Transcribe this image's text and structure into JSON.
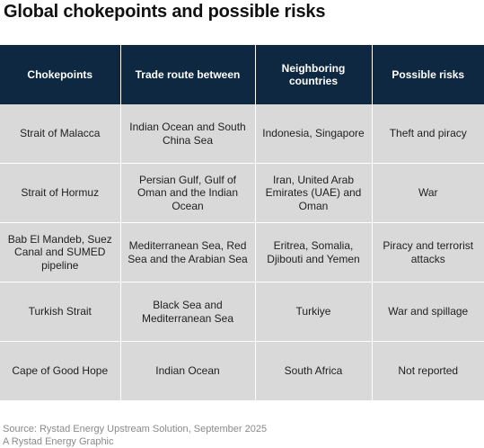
{
  "chart_data": {
    "type": "table",
    "title": "Global chokepoints and possible risks",
    "columns": [
      "Chokepoints",
      "Trade route between",
      "Neighboring countries",
      "Possible risks"
    ],
    "rows": [
      [
        "Strait of Malacca",
        "Indian Ocean and South China Sea",
        "Indonesia, Singapore",
        "Theft and piracy"
      ],
      [
        "Strait of Hormuz",
        "Persian Gulf, Gulf of Oman and the Indian Ocean",
        "Iran, United Arab Emirates (UAE) and Oman",
        "War"
      ],
      [
        "Bab El Mandeb, Suez Canal and SUMED pipeline",
        "Mediterranean Sea, Red Sea and the Arabian Sea",
        "Eritrea, Somalia, Djibouti and Yemen",
        "Piracy and terrorist attacks"
      ],
      [
        "Turkish Strait",
        "Black Sea and Mediterranean Sea",
        "Turkiye",
        "War and spillage"
      ],
      [
        "Cape of Good Hope",
        "Indian Ocean",
        "South Africa",
        "Not reported"
      ]
    ]
  },
  "footer": {
    "source": "Source: Rystad Energy Upstream Solution, September 2025",
    "credit": "A Rystad Energy Graphic"
  },
  "colors": {
    "header_bg": "#0f2841",
    "cell_bg": "#d9d9d9",
    "footnote": "#8a8a8a"
  }
}
